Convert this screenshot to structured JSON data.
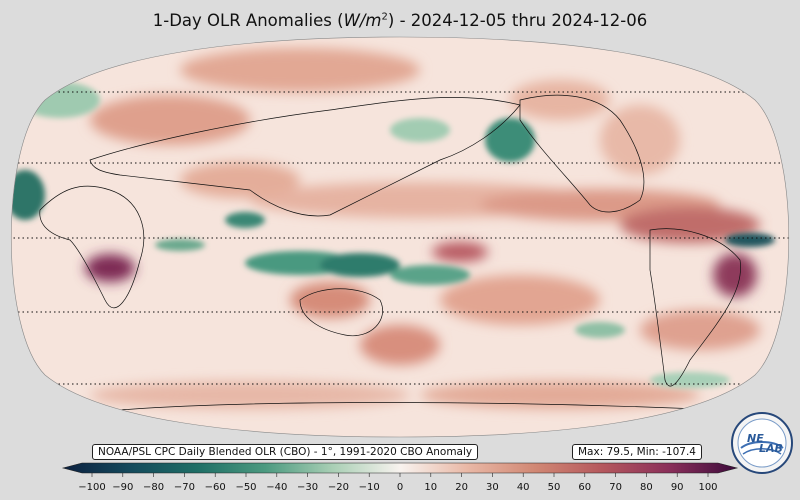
{
  "title": {
    "prefix": "1-Day OLR Anomalies (",
    "unit": "W/m",
    "unit_sup": "2",
    "suffix": ") - 2024-12-05 thru 2024-12-06"
  },
  "source_label": "NOAA/PSL CPC Daily Blended OLR (CBO) - 1°, 1991-2020 CBO Anomaly",
  "stats_label": "Max: 79.5,  Min: -107.4",
  "logo": {
    "line1": "NE",
    "line2": "LAB"
  },
  "colorbar": {
    "ticks": [
      "−100",
      "−90",
      "−80",
      "−70",
      "−60",
      "−50",
      "−40",
      "−30",
      "−20",
      "−10",
      "0",
      "10",
      "20",
      "30",
      "40",
      "50",
      "60",
      "70",
      "80",
      "90",
      "100"
    ],
    "stops": [
      {
        "value": -100,
        "color": "#0c2040"
      },
      {
        "value": -80,
        "color": "#144a5c"
      },
      {
        "value": -60,
        "color": "#1f6f66"
      },
      {
        "value": -40,
        "color": "#4c9a80"
      },
      {
        "value": -20,
        "color": "#a9cfb5"
      },
      {
        "value": 0,
        "color": "#f8f3ef"
      },
      {
        "value": 20,
        "color": "#e9b8a6"
      },
      {
        "value": 40,
        "color": "#d18874"
      },
      {
        "value": 60,
        "color": "#b5585d"
      },
      {
        "value": 80,
        "color": "#8a2f5a"
      },
      {
        "value": 100,
        "color": "#3d0b3c"
      }
    ]
  },
  "colors": {
    "background": "#dcdcdc",
    "ocean_base": "#f6e4dc",
    "positive_anomaly": "#c9776a",
    "negative_anomaly": "#2f7f6c"
  },
  "latitude_lines": [
    60,
    30,
    0,
    -30,
    -60
  ]
}
